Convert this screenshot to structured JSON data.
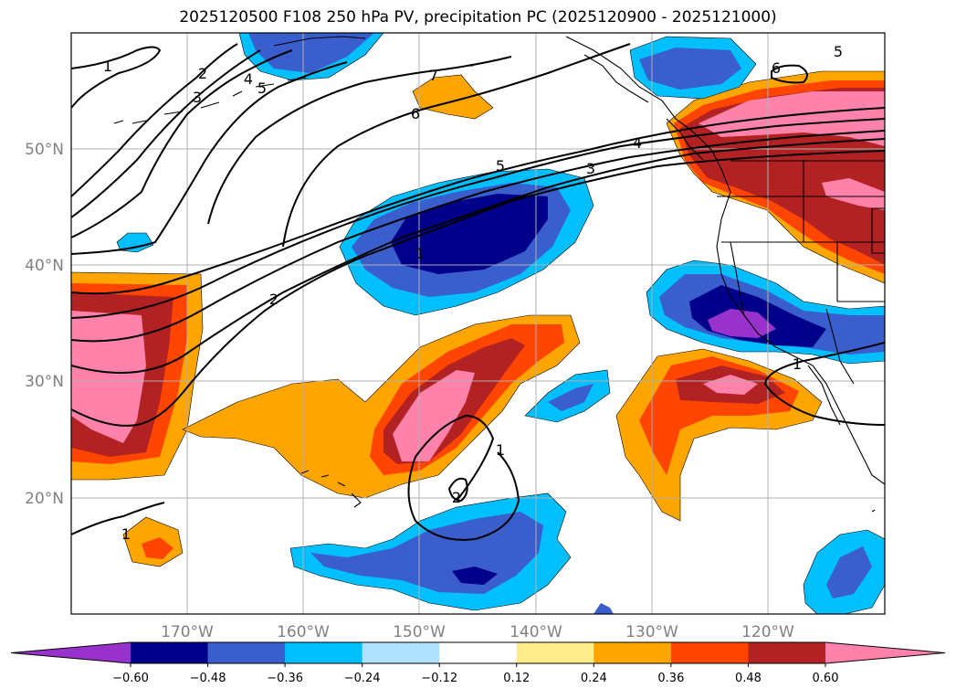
{
  "title": "2025120500 F108 250 hPa PV, precipitation PC (2025120900 - 2025121000)",
  "map": {
    "lat_labels": [
      "50°N",
      "40°N",
      "30°N",
      "20°N"
    ],
    "lon_labels": [
      "170°W",
      "160°W",
      "150°W",
      "140°W",
      "130°W",
      "120°W"
    ]
  },
  "colorbar": {
    "ticks": [
      "−0.60",
      "−0.48",
      "−0.36",
      "−0.24",
      "−0.12",
      "0.12",
      "0.24",
      "0.36",
      "0.48",
      "0.60"
    ],
    "colors": [
      "#9932cc",
      "#00008b",
      "#3a5fcd",
      "#00bfff",
      "#b0e2ff",
      "#ffffff",
      "#ffec8b",
      "#ffa500",
      "#ff4500",
      "#b22222",
      "#ff82ab"
    ]
  },
  "pv_contour_labels": [
    "1",
    "2",
    "3",
    "4",
    "5",
    "6",
    "7",
    "4",
    "3",
    "5",
    "6",
    "5",
    "1",
    "2",
    "1",
    "1",
    "2",
    "1"
  ],
  "colors": {
    "contour": "#000000",
    "grid": "#b0b0b0",
    "coast": "#000000"
  }
}
